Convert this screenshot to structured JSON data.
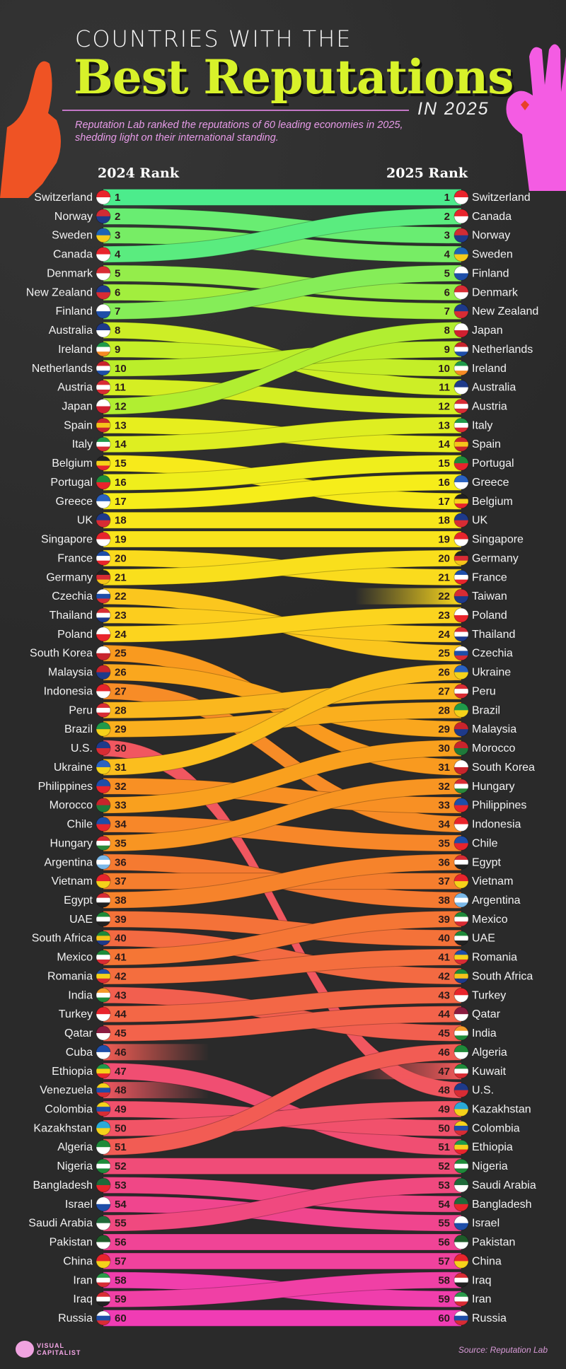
{
  "header": {
    "line1": "COUNTRIES WITH THE",
    "title": "Best Reputations",
    "year": "IN 2025",
    "subtitle": "Reputation Lab ranked the reputations of 60 leading economies in 2025, shedding light on their international standing."
  },
  "footer": {
    "logo": "VISUAL CAPITALIST",
    "source": "Source: Reputation Lab"
  },
  "chart_data": {
    "type": "bump",
    "left_label": "2024 Rank",
    "right_label": "2025 Rank",
    "rank_2024": [
      "Switzerland",
      "Norway",
      "Sweden",
      "Canada",
      "Denmark",
      "New Zealand",
      "Finland",
      "Australia",
      "Ireland",
      "Netherlands",
      "Austria",
      "Japan",
      "Spain",
      "Italy",
      "Belgium",
      "Portugal",
      "Greece",
      "UK",
      "Singapore",
      "France",
      "Germany",
      "Czechia",
      "Thailand",
      "Poland",
      "South Korea",
      "Malaysia",
      "Indonesia",
      "Peru",
      "Brazil",
      "U.S.",
      "Ukraine",
      "Philippines",
      "Morocco",
      "Chile",
      "Hungary",
      "Argentina",
      "Vietnam",
      "Egypt",
      "UAE",
      "South Africa",
      "Mexico",
      "Romania",
      "India",
      "Turkey",
      "Qatar",
      "Cuba",
      "Ethiopia",
      "Venezuela",
      "Colombia",
      "Kazakhstan",
      "Algeria",
      "Nigeria",
      "Bangladesh",
      "Israel",
      "Saudi Arabia",
      "Pakistan",
      "China",
      "Iran",
      "Iraq",
      "Russia"
    ],
    "rank_2025": [
      "Switzerland",
      "Canada",
      "Norway",
      "Sweden",
      "Finland",
      "Denmark",
      "New Zealand",
      "Japan",
      "Netherlands",
      "Ireland",
      "Australia",
      "Austria",
      "Italy",
      "Spain",
      "Portugal",
      "Greece",
      "Belgium",
      "UK",
      "Singapore",
      "Germany",
      "France",
      "Taiwan",
      "Poland",
      "Thailand",
      "Czechia",
      "Ukraine",
      "Peru",
      "Brazil",
      "Malaysia",
      "Morocco",
      "South Korea",
      "Hungary",
      "Philippines",
      "Indonesia",
      "Chile",
      "Egypt",
      "Vietnam",
      "Argentina",
      "Mexico",
      "UAE",
      "Romania",
      "South Africa",
      "Turkey",
      "Qatar",
      "India",
      "Algeria",
      "Kuwait",
      "U.S.",
      "Kazakhstan",
      "Colombia",
      "Ethiopia",
      "Nigeria",
      "Saudi Arabia",
      "Bangladesh",
      "Israel",
      "Pakistan",
      "China",
      "Iraq",
      "Iran",
      "Russia"
    ],
    "color_scale": [
      "#4cec8c",
      "#b6ee2c",
      "#f6ee1a",
      "#fcd41e",
      "#f99c1e",
      "#f57a30",
      "#f25e50",
      "#f04a7c",
      "#f03cb4"
    ]
  }
}
